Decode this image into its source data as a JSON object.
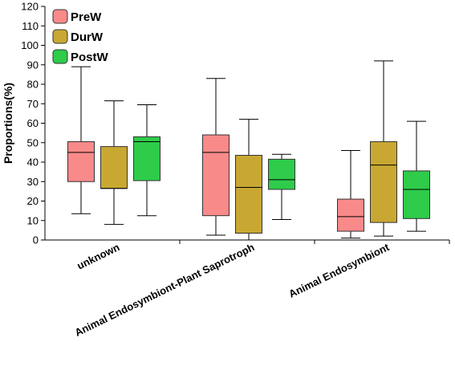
{
  "chart_data": {
    "type": "boxplot",
    "ylabel": "Proportions(%)",
    "ylim": [
      0,
      120
    ],
    "yticks": [
      0,
      10,
      20,
      30,
      40,
      50,
      60,
      70,
      80,
      90,
      100,
      110,
      120
    ],
    "categories": [
      "unknown",
      "Animal Endosymbiont-Plant Saprotroph",
      "Animal Endosymbiont"
    ],
    "legend_position": "top-left",
    "series": [
      {
        "name": "PreW",
        "color": "#f88a8a",
        "boxes": [
          {
            "min": 13.5,
            "q1": 30,
            "median": 45,
            "q3": 50.5,
            "max": 89
          },
          {
            "min": 2.5,
            "q1": 12.5,
            "median": 45,
            "q3": 54,
            "max": 83
          },
          {
            "min": 1,
            "q1": 4.5,
            "median": 12,
            "q3": 21,
            "max": 46
          }
        ]
      },
      {
        "name": "DurW",
        "color": "#c8a832",
        "boxes": [
          {
            "min": 8,
            "q1": 26.5,
            "median": 26.5,
            "q3": 48,
            "max": 71.5
          },
          {
            "min": 0,
            "q1": 3.5,
            "median": 27,
            "q3": 43.5,
            "max": 62
          },
          {
            "min": 2,
            "q1": 9,
            "median": 38.5,
            "q3": 50.5,
            "max": 92
          }
        ]
      },
      {
        "name": "PostW",
        "color": "#2ecc4a",
        "boxes": [
          {
            "min": 12.5,
            "q1": 30.5,
            "median": 50.5,
            "q3": 53,
            "max": 69.5
          },
          {
            "min": 10.5,
            "q1": 26,
            "median": 31,
            "q3": 41.5,
            "max": 44
          },
          {
            "min": 4.5,
            "q1": 11,
            "median": 26,
            "q3": 35.5,
            "max": 61
          }
        ]
      }
    ]
  }
}
